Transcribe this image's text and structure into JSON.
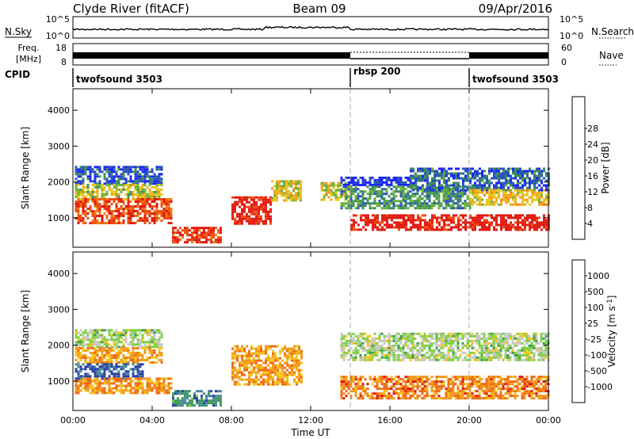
{
  "header": {
    "station": "Clyde River (fitACF)",
    "beam": "Beam 09",
    "date": "09/Apr/2016"
  },
  "strips": {
    "nsky_label": "N.Sky",
    "nsearch_label": "N.Search",
    "nsky_ticks": [
      "10^5",
      "10^0"
    ],
    "nsearch_ticks": [
      "10^5",
      "10^0"
    ],
    "freq_label_1": "Freq.",
    "freq_label_2": "[MHz]",
    "freq_ticks": [
      "18",
      "8"
    ],
    "nave_label": "Nave",
    "nave_ticks": [
      "60",
      "0"
    ],
    "cpid_label": "CPID",
    "cpid_segments": [
      {
        "label": "twofsound 3503",
        "start": 0,
        "end": 14
      },
      {
        "label": "rbsp 200",
        "start": 14,
        "end": 20
      },
      {
        "label": "twofsound 3503",
        "start": 20,
        "end": 24
      }
    ]
  },
  "chart_data": [
    {
      "type": "heatmap",
      "variable": "Power",
      "ylabel": "Slant Range [km]",
      "xlim": [
        0,
        24
      ],
      "ylim": [
        180,
        4600
      ],
      "yticks": [
        "1000",
        "2000",
        "3000",
        "4000"
      ],
      "xticks": [
        "00:00",
        "04:00",
        "08:00",
        "12:00",
        "16:00",
        "20:00",
        "00:00"
      ],
      "colorbar": {
        "label": "Power [dB]",
        "tick_labels": [
          "4",
          "8",
          "12",
          "16",
          "20",
          "24",
          "28"
        ],
        "colors": [
          "#1b24ff",
          "#2b55b8",
          "#3c8e5d",
          "#6ab13a",
          "#e5c71e",
          "#f5a21a",
          "#f07c18",
          "#ee5012",
          "#e21a10"
        ]
      },
      "regions": [
        {
          "t0": 0.1,
          "t1": 4.5,
          "r0": 1950,
          "r1": 2450,
          "level": 0.15
        },
        {
          "t0": 0.1,
          "t1": 4.5,
          "r0": 1550,
          "r1": 1950,
          "level": 0.45
        },
        {
          "t0": 0.1,
          "t1": 5.0,
          "r0": 850,
          "r1": 1550,
          "level": 0.85
        },
        {
          "t0": 5.0,
          "t1": 7.5,
          "r0": 350,
          "r1": 750,
          "level": 0.9
        },
        {
          "t0": 8.0,
          "t1": 10.0,
          "r0": 850,
          "r1": 1600,
          "level": 0.95
        },
        {
          "t0": 10.0,
          "t1": 11.5,
          "r0": 1500,
          "r1": 2050,
          "level": 0.5
        },
        {
          "t0": 12.5,
          "t1": 14.0,
          "r0": 1500,
          "r1": 2000,
          "level": 0.5
        },
        {
          "t0": 13.5,
          "t1": 17.0,
          "r0": 1900,
          "r1": 2150,
          "level": 0.05
        },
        {
          "t0": 13.5,
          "t1": 20.0,
          "r0": 1300,
          "r1": 1900,
          "level": 0.3
        },
        {
          "t0": 17.0,
          "t1": 24.0,
          "r0": 1800,
          "r1": 2400,
          "level": 0.2
        },
        {
          "t0": 14.0,
          "t1": 24.0,
          "r0": 650,
          "r1": 1100,
          "level": 0.98
        },
        {
          "t0": 20.0,
          "t1": 24.0,
          "r0": 1350,
          "r1": 1800,
          "level": 0.55
        }
      ]
    },
    {
      "type": "heatmap",
      "variable": "Velocity",
      "ylabel": "Slant Range [km]",
      "xlim": [
        0,
        24
      ],
      "ylim": [
        180,
        4600
      ],
      "yticks": [
        "1000",
        "2000",
        "3000",
        "4000"
      ],
      "xticks": [
        "00:00",
        "04:00",
        "08:00",
        "12:00",
        "16:00",
        "20:00",
        "00:00"
      ],
      "xlabel": "Time UT",
      "colorbar": {
        "label": "Velocity [m s",
        "label_superscript": "-1",
        "label_close": "]",
        "tick_labels": [
          "1000",
          "500",
          "100",
          "25",
          "-25",
          "-100",
          "-500",
          "-1000"
        ],
        "colors": [
          "#2b3fa8",
          "#4a8a9a",
          "#3c9c4d",
          "#7ed040",
          "#c8c8c8",
          "#f5c51e",
          "#f29a1a",
          "#ef6a15",
          "#e21a10"
        ]
      },
      "regions": [
        {
          "t0": 0.1,
          "t1": 4.5,
          "r0": 1950,
          "r1": 2450,
          "level": 0.45
        },
        {
          "t0": 0.1,
          "t1": 4.5,
          "r0": 1500,
          "r1": 1950,
          "level": 0.7
        },
        {
          "t0": 0.1,
          "t1": 3.5,
          "r0": 1100,
          "r1": 1500,
          "level": 0.08
        },
        {
          "t0": 0.1,
          "t1": 5.0,
          "r0": 700,
          "r1": 1100,
          "level": 0.75
        },
        {
          "t0": 5.0,
          "t1": 7.5,
          "r0": 350,
          "r1": 750,
          "level": 0.2
        },
        {
          "t0": 8.0,
          "t1": 11.5,
          "r0": 900,
          "r1": 2000,
          "level": 0.72
        },
        {
          "t0": 13.5,
          "t1": 24.0,
          "r0": 1600,
          "r1": 2350,
          "level": 0.45
        },
        {
          "t0": 13.5,
          "t1": 24.0,
          "r0": 550,
          "r1": 1150,
          "level": 0.78
        }
      ]
    }
  ]
}
